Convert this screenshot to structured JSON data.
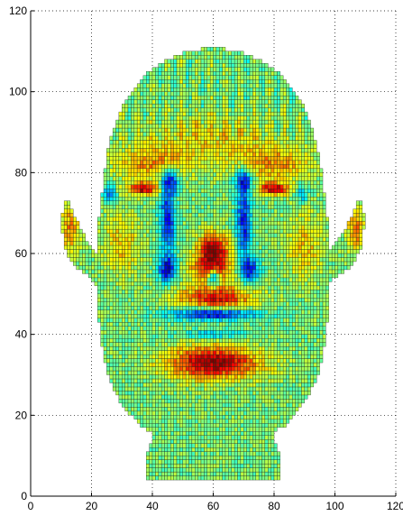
{
  "chart_data": {
    "type": "heatmap",
    "title": "",
    "xlabel": "",
    "ylabel": "",
    "xlim": [
      0,
      120
    ],
    "ylim": [
      0,
      120
    ],
    "xticks": [
      0,
      20,
      40,
      60,
      80,
      100,
      120
    ],
    "yticks": [
      0,
      20,
      40,
      60,
      80,
      100,
      120
    ],
    "grid": true,
    "colormap": "jet",
    "grid_spacing": 1,
    "colors": {
      "mesh_line": "#1a2a1a",
      "base": "#4fc18f",
      "low": "#1d45c8",
      "high": "#c63a22"
    },
    "regions": {
      "head_outline": [
        [
          22,
          60
        ],
        [
          22,
          66
        ],
        [
          23,
          72
        ],
        [
          24,
          78
        ],
        [
          25,
          84
        ],
        [
          27,
          90
        ],
        [
          30,
          96
        ],
        [
          34,
          101
        ],
        [
          39,
          105
        ],
        [
          45,
          108
        ],
        [
          52,
          110
        ],
        [
          60,
          111
        ],
        [
          68,
          110
        ],
        [
          75,
          108
        ],
        [
          81,
          105
        ],
        [
          86,
          101
        ],
        [
          90,
          96
        ],
        [
          93,
          90
        ],
        [
          95,
          84
        ],
        [
          96,
          78
        ],
        [
          97,
          72
        ],
        [
          98,
          66
        ],
        [
          98,
          60
        ],
        [
          102,
          64
        ],
        [
          106,
          70
        ],
        [
          108,
          74
        ],
        [
          110,
          69
        ],
        [
          109,
          62
        ],
        [
          106,
          57
        ],
        [
          100,
          54
        ],
        [
          98,
          52
        ],
        [
          98,
          46
        ],
        [
          97,
          40
        ],
        [
          96,
          34
        ],
        [
          94,
          29
        ],
        [
          91,
          24
        ],
        [
          87,
          20
        ],
        [
          83,
          17
        ],
        [
          80,
          16
        ],
        [
          80,
          14
        ],
        [
          82,
          10
        ],
        [
          82,
          6
        ],
        [
          82,
          4
        ],
        [
          38,
          4
        ],
        [
          38,
          6
        ],
        [
          38,
          10
        ],
        [
          40,
          14
        ],
        [
          40,
          16
        ],
        [
          37,
          17
        ],
        [
          33,
          20
        ],
        [
          29,
          24
        ],
        [
          26,
          29
        ],
        [
          24,
          34
        ],
        [
          23,
          40
        ],
        [
          22,
          46
        ],
        [
          22,
          52
        ],
        [
          20,
          54
        ],
        [
          14,
          57
        ],
        [
          11,
          62
        ],
        [
          10,
          69
        ],
        [
          12,
          74
        ],
        [
          14,
          70
        ],
        [
          18,
          64
        ]
      ],
      "features": [
        {
          "kind": "high",
          "x": 59,
          "y": 56,
          "rx": 7,
          "ry": 3,
          "w": 0.7
        },
        {
          "kind": "high",
          "x": 60,
          "y": 61,
          "rx": 5,
          "ry": 4,
          "w": 1.0
        },
        {
          "kind": "high",
          "x": 60,
          "y": 33,
          "rx": 15,
          "ry": 4,
          "w": 1.0
        },
        {
          "kind": "high",
          "x": 61,
          "y": 49,
          "rx": 12,
          "ry": 3,
          "w": 0.8
        },
        {
          "kind": "high",
          "x": 37,
          "y": 76,
          "rx": 5,
          "ry": 1.5,
          "w": 0.9
        },
        {
          "kind": "high",
          "x": 80,
          "y": 76,
          "rx": 5,
          "ry": 1.5,
          "w": 0.9
        },
        {
          "kind": "high",
          "x": 40,
          "y": 82,
          "rx": 12,
          "ry": 4,
          "w": 0.45
        },
        {
          "kind": "high",
          "x": 80,
          "y": 82,
          "rx": 12,
          "ry": 4,
          "w": 0.45
        },
        {
          "kind": "high",
          "x": 60,
          "y": 88,
          "rx": 22,
          "ry": 6,
          "w": 0.3
        },
        {
          "kind": "high",
          "x": 30,
          "y": 62,
          "rx": 6,
          "ry": 8,
          "w": 0.35
        },
        {
          "kind": "high",
          "x": 90,
          "y": 62,
          "rx": 6,
          "ry": 8,
          "w": 0.35
        },
        {
          "kind": "high",
          "x": 13,
          "y": 66,
          "rx": 3,
          "ry": 6,
          "w": 0.5
        },
        {
          "kind": "high",
          "x": 107,
          "y": 66,
          "rx": 3,
          "ry": 6,
          "w": 0.5
        },
        {
          "kind": "low",
          "x": 60,
          "y": 45,
          "rx": 14,
          "ry": 1.5,
          "w": 1.0
        },
        {
          "kind": "low",
          "x": 60,
          "y": 54,
          "rx": 2,
          "ry": 2,
          "w": 1.0
        },
        {
          "kind": "low",
          "x": 45,
          "y": 56,
          "rx": 3,
          "ry": 3,
          "w": 0.9
        },
        {
          "kind": "low",
          "x": 72,
          "y": 56,
          "rx": 3,
          "ry": 3,
          "w": 0.9
        },
        {
          "kind": "low",
          "x": 45,
          "y": 68,
          "rx": 2.5,
          "ry": 9,
          "w": 0.85
        },
        {
          "kind": "low",
          "x": 70,
          "y": 68,
          "rx": 2.5,
          "ry": 9,
          "w": 0.85
        },
        {
          "kind": "low",
          "x": 46,
          "y": 78,
          "rx": 3,
          "ry": 3,
          "w": 0.8
        },
        {
          "kind": "low",
          "x": 70,
          "y": 78,
          "rx": 3,
          "ry": 3,
          "w": 0.8
        },
        {
          "kind": "low",
          "x": 26,
          "y": 75,
          "rx": 2,
          "ry": 2,
          "w": 0.6
        },
        {
          "kind": "low",
          "x": 89,
          "y": 75,
          "rx": 2,
          "ry": 2,
          "w": 0.6
        },
        {
          "kind": "low",
          "x": 60,
          "y": 40,
          "rx": 12,
          "ry": 1.2,
          "w": 0.4
        }
      ]
    }
  }
}
